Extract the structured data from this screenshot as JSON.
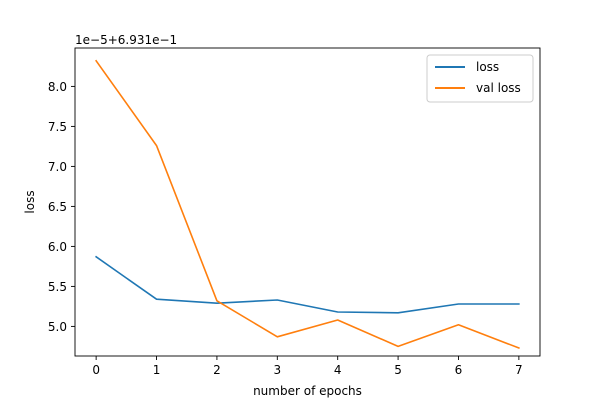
{
  "chart_data": {
    "type": "line",
    "title": "",
    "xlabel": "number of epochs",
    "ylabel": "loss",
    "offset_text": "1e−5+6.931e−1",
    "x": [
      0,
      1,
      2,
      3,
      4,
      5,
      6,
      7
    ],
    "xticks": [
      0,
      1,
      2,
      3,
      4,
      5,
      6,
      7
    ],
    "xtick_labels": [
      "0",
      "1",
      "2",
      "3",
      "4",
      "5",
      "6",
      "7"
    ],
    "yticks": [
      5.0,
      5.5,
      6.0,
      6.5,
      7.0,
      7.5,
      8.0
    ],
    "ytick_labels": [
      "5.0",
      "5.5",
      "6.0",
      "6.5",
      "7.0",
      "7.5",
      "8.0"
    ],
    "xlim": [
      -0.35,
      7.35
    ],
    "ylim": [
      4.63,
      8.48
    ],
    "y_scale_note": "values shown as (loss - 0.6931) / 1e-5",
    "grid": false,
    "legend_position": "top-right",
    "series": [
      {
        "name": "loss",
        "color": "#1f77b4",
        "values": [
          5.87,
          5.34,
          5.29,
          5.33,
          5.18,
          5.17,
          5.28,
          5.28
        ]
      },
      {
        "name": "val loss",
        "color": "#ff7f0e",
        "values": [
          8.32,
          7.26,
          5.32,
          4.87,
          5.08,
          4.75,
          5.02,
          4.73
        ]
      }
    ]
  }
}
